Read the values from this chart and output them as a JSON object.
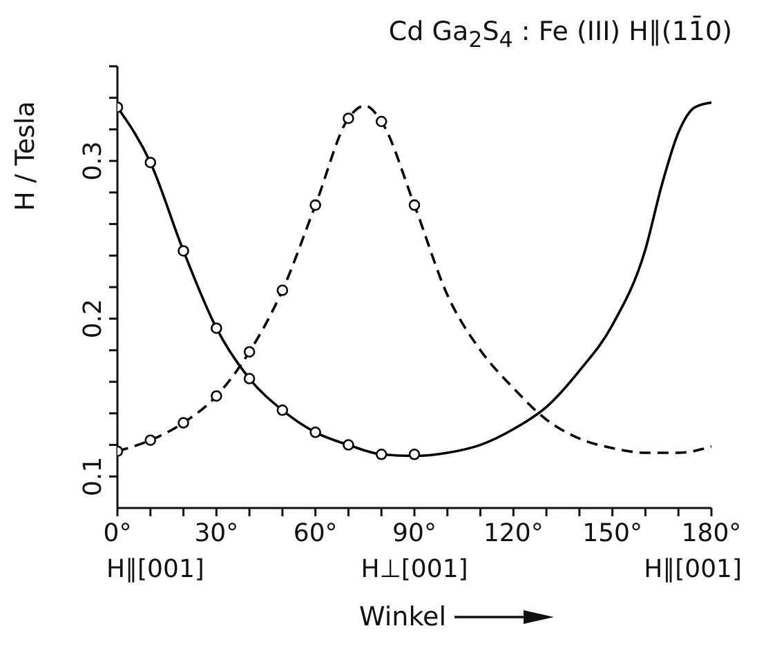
{
  "chart_data": {
    "type": "line",
    "title": "Cd Ga$_{2}$S$_{4}$ : Fe (III) H∥(11̄0)",
    "xlabel": "Winkel",
    "ylabel": "H / Tesla",
    "xlim": [
      0,
      180
    ],
    "xticks": [
      {
        "value": 0,
        "label": "0°"
      },
      {
        "value": 10,
        "label": null
      },
      {
        "value": 20,
        "label": null
      },
      {
        "value": 30,
        "label": "30°"
      },
      {
        "value": 40,
        "label": null
      },
      {
        "value": 50,
        "label": null
      },
      {
        "value": 60,
        "label": "60°"
      },
      {
        "value": 70,
        "label": null
      },
      {
        "value": 80,
        "label": null
      },
      {
        "value": 90,
        "label": "90°"
      },
      {
        "value": 100,
        "label": null
      },
      {
        "value": 110,
        "label": null
      },
      {
        "value": 120,
        "label": "120°"
      },
      {
        "value": 130,
        "label": null
      },
      {
        "value": 140,
        "label": null
      },
      {
        "value": 150,
        "label": "150°"
      },
      {
        "value": 160,
        "label": null
      },
      {
        "value": 170,
        "label": null
      },
      {
        "value": 180,
        "label": "180°"
      }
    ],
    "ylim": [
      0.08,
      0.36
    ],
    "yticks": [
      0.1,
      {
        "value": 0.12,
        "label": null
      },
      {
        "value": 0.14,
        "label": null
      },
      {
        "value": 0.16,
        "label": null
      },
      {
        "value": 0.18,
        "label": null
      },
      0.2,
      {
        "value": 0.22,
        "label": null
      },
      {
        "value": 0.24,
        "label": null
      },
      {
        "value": 0.26,
        "label": null
      },
      {
        "value": 0.28,
        "label": null
      },
      0.3,
      {
        "value": 0.32,
        "label": null
      },
      {
        "value": 0.34,
        "label": null
      },
      {
        "value": 0.36,
        "label": null
      }
    ],
    "grid": false,
    "annotations": [
      "H∥[001]",
      "H⊥[001]",
      "H∥[001]"
    ],
    "series": [
      {
        "color": "#000000",
        "line_style": "solid",
        "marker": "none",
        "x": [
          0,
          10,
          20,
          30,
          40,
          50,
          60,
          70,
          80,
          90,
          100,
          110,
          120,
          130,
          140,
          150,
          160,
          165,
          170,
          175,
          180
        ],
        "values": [
          0.334,
          0.299,
          0.243,
          0.194,
          0.162,
          0.142,
          0.128,
          0.12,
          0.114,
          0.113,
          0.115,
          0.12,
          0.13,
          0.144,
          0.167,
          0.196,
          0.244,
          0.285,
          0.318,
          0.334,
          0.337
        ]
      },
      {
        "color": "#000000",
        "line_style": "dashed",
        "marker": "none",
        "x": [
          0,
          10,
          20,
          30,
          40,
          50,
          60,
          70,
          75,
          80,
          90,
          100,
          110,
          120,
          130,
          140,
          150,
          160,
          170,
          180
        ],
        "values": [
          0.116,
          0.123,
          0.134,
          0.151,
          0.179,
          0.218,
          0.272,
          0.327,
          0.335,
          0.325,
          0.272,
          0.215,
          0.18,
          0.156,
          0.136,
          0.124,
          0.118,
          0.115,
          0.115,
          0.119
        ]
      },
      {
        "type": "scatter",
        "color": "#000000",
        "marker": "circle",
        "x": [
          0,
          10,
          20,
          30,
          40,
          50,
          60,
          70,
          80,
          90
        ],
        "values": [
          0.334,
          0.299,
          0.243,
          0.194,
          0.162,
          0.142,
          0.128,
          0.12,
          0.114,
          0.114
        ]
      },
      {
        "type": "scatter",
        "color": "#000000",
        "marker": "circle",
        "x": [
          0,
          10,
          20,
          30,
          40,
          50,
          60,
          70,
          80,
          90
        ],
        "values": [
          0.116,
          0.123,
          0.134,
          0.151,
          0.179,
          0.218,
          0.272,
          0.327,
          0.325,
          0.272
        ]
      }
    ]
  }
}
